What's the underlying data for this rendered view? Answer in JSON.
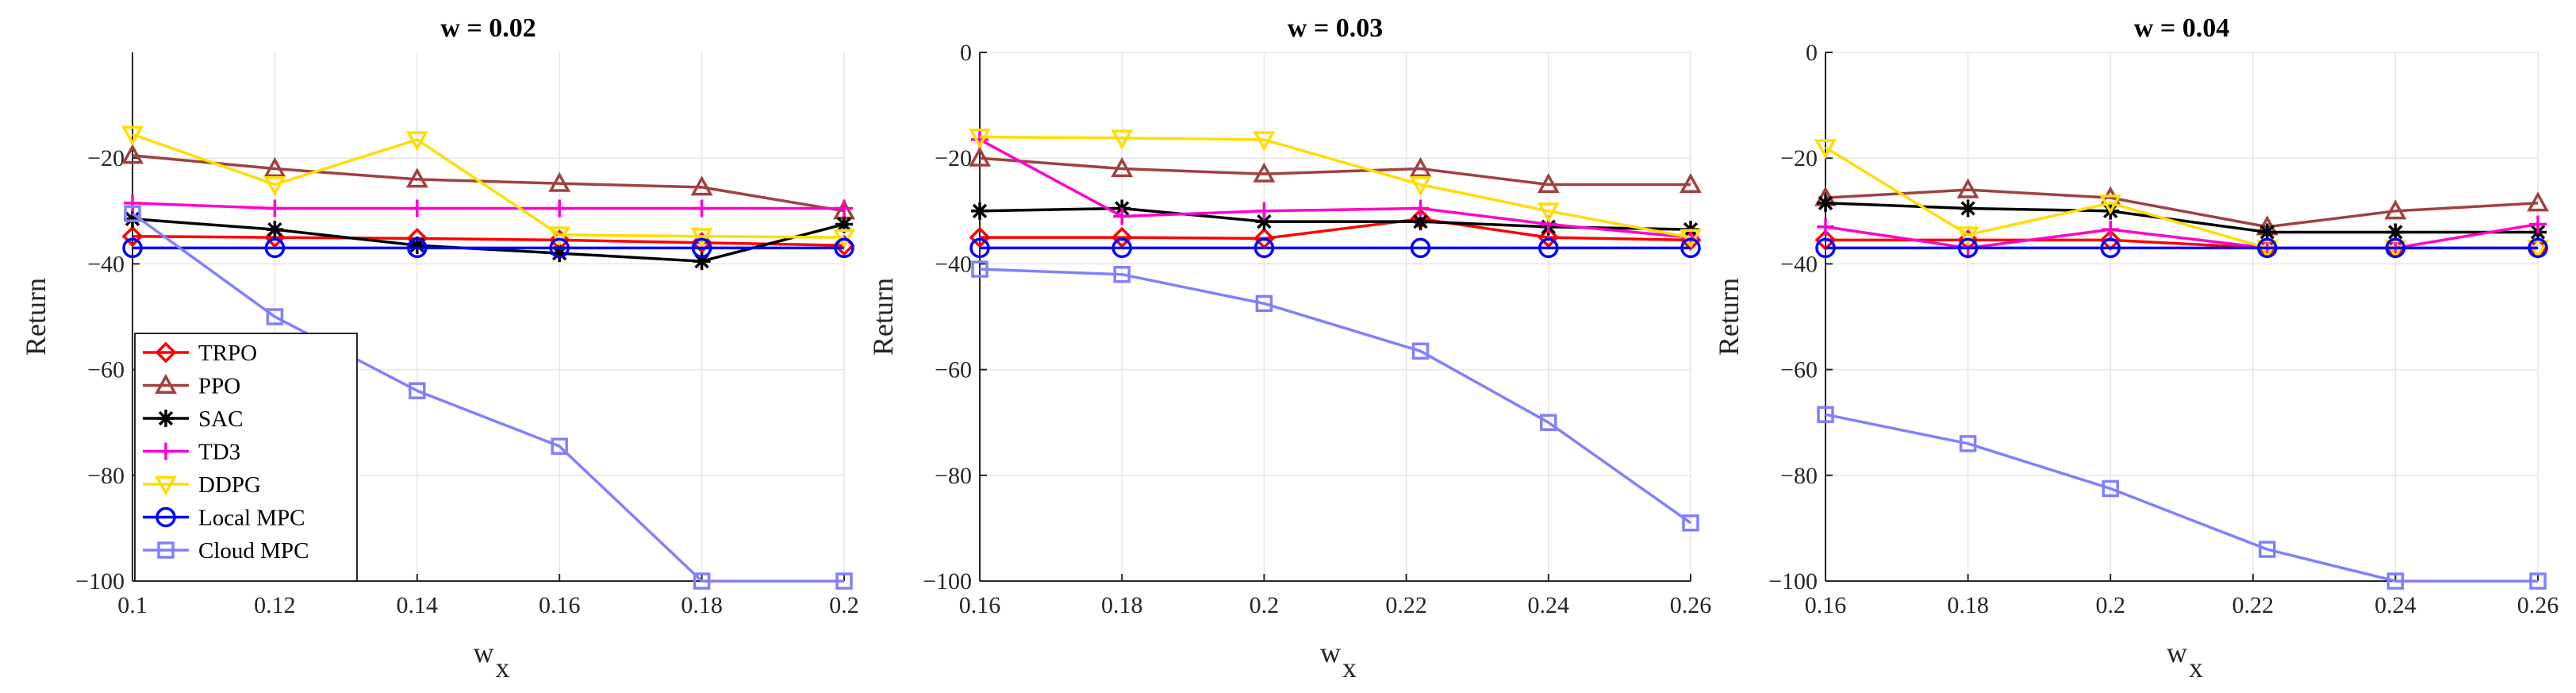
{
  "chart_data": [
    {
      "type": "line",
      "title": "w = 0.02",
      "xlabel": "w",
      "xlabel_sub": "x",
      "ylabel": "Return",
      "xlim": [
        0.1,
        0.2
      ],
      "ylim": [
        -100,
        0
      ],
      "xticks": [
        0.1,
        0.12,
        0.14,
        0.16,
        0.18,
        0.2
      ],
      "xtick_labels": [
        "0.1",
        "0.12",
        "0.14",
        "0.16",
        "0.18",
        "0.2"
      ],
      "yticks": [
        -100,
        -80,
        -60,
        -40,
        -20
      ],
      "ytick_labels": [
        "−100",
        "−80",
        "−60",
        "−40",
        "−20"
      ],
      "grid": true,
      "legend": "bottom-left",
      "x": [
        0.1,
        0.12,
        0.14,
        0.16,
        0.18,
        0.2
      ],
      "series": [
        {
          "name": "TRPO",
          "color": "#ff0000",
          "marker": "diamond",
          "values": [
            -34.8,
            -35.0,
            -35.2,
            -35.5,
            -36.0,
            -36.5
          ]
        },
        {
          "name": "PPO",
          "color": "#a0413f",
          "marker": "triangle-up",
          "values": [
            -19.5,
            -22.0,
            -24.0,
            -24.8,
            -25.5,
            -30.0
          ]
        },
        {
          "name": "SAC",
          "color": "#000000",
          "marker": "asterisk",
          "values": [
            -31.5,
            -33.5,
            -36.5,
            -38.0,
            -39.5,
            -32.5
          ]
        },
        {
          "name": "TD3",
          "color": "#ff00cc",
          "marker": "plus",
          "values": [
            -28.5,
            -29.5,
            -29.5,
            -29.5,
            -29.5,
            -29.5
          ]
        },
        {
          "name": "DDPG",
          "color": "#ffdd00",
          "marker": "triangle-down",
          "values": [
            -15.5,
            -25.0,
            -16.5,
            -34.5,
            -34.8,
            -35.0
          ]
        },
        {
          "name": "Local MPC",
          "color": "#0000ff",
          "marker": "circle",
          "values": [
            -37.0,
            -37.0,
            -37.0,
            -37.0,
            -37.0,
            -37.0
          ]
        },
        {
          "name": "Cloud MPC",
          "color": "#8080ff",
          "marker": "square",
          "values": [
            -30.5,
            -50.0,
            -64.0,
            -74.5,
            -100.0,
            -100.0
          ]
        }
      ]
    },
    {
      "type": "line",
      "title": "w = 0.03",
      "xlabel": "w",
      "xlabel_sub": "x",
      "ylabel": "Return",
      "xlim": [
        0.16,
        0.26
      ],
      "ylim": [
        -100,
        0
      ],
      "xticks": [
        0.16,
        0.18,
        0.2,
        0.22,
        0.24,
        0.26
      ],
      "xtick_labels": [
        "0.16",
        "0.18",
        "0.2",
        "0.22",
        "0.24",
        "0.26"
      ],
      "yticks": [
        -100,
        -80,
        -60,
        -40,
        -20,
        0
      ],
      "ytick_labels": [
        "−100",
        "−80",
        "−60",
        "−40",
        "−20",
        "0"
      ],
      "grid": true,
      "x": [
        0.16,
        0.18,
        0.2,
        0.222,
        0.24,
        0.26
      ],
      "series": [
        {
          "name": "TRPO",
          "color": "#ff0000",
          "marker": "diamond",
          "values": [
            -35.0,
            -35.0,
            -35.2,
            -31.5,
            -35.0,
            -35.5
          ]
        },
        {
          "name": "PPO",
          "color": "#a0413f",
          "marker": "triangle-up",
          "values": [
            -20.0,
            -22.0,
            -23.0,
            -22.0,
            -25.0,
            -25.0
          ]
        },
        {
          "name": "SAC",
          "color": "#000000",
          "marker": "asterisk",
          "values": [
            -30.0,
            -29.5,
            -32.0,
            -32.0,
            -33.0,
            -33.5
          ]
        },
        {
          "name": "TD3",
          "color": "#ff00cc",
          "marker": "plus",
          "values": [
            -16.5,
            -31.0,
            -30.0,
            -29.5,
            -32.5,
            -35.0
          ]
        },
        {
          "name": "DDPG",
          "color": "#ffdd00",
          "marker": "triangle-down",
          "values": [
            -16.0,
            -16.2,
            -16.5,
            -25.0,
            -30.0,
            -35.0
          ]
        },
        {
          "name": "Local MPC",
          "color": "#0000ff",
          "marker": "circle",
          "values": [
            -37.0,
            -37.0,
            -37.0,
            -37.0,
            -37.0,
            -37.0
          ]
        },
        {
          "name": "Cloud MPC",
          "color": "#8080ff",
          "marker": "square",
          "values": [
            -41.0,
            -42.0,
            -47.5,
            -56.5,
            -70.0,
            -89.0
          ]
        }
      ]
    },
    {
      "type": "line",
      "title": "w = 0.04",
      "xlabel": "w",
      "xlabel_sub": "x",
      "ylabel": "Return",
      "xlim": [
        0.16,
        0.26
      ],
      "ylim": [
        -100,
        0
      ],
      "xticks": [
        0.16,
        0.18,
        0.2,
        0.22,
        0.24,
        0.26
      ],
      "xtick_labels": [
        "0.16",
        "0.18",
        "0.2",
        "0.22",
        "0.24",
        "0.26"
      ],
      "yticks": [
        -100,
        -80,
        -60,
        -40,
        -20,
        0
      ],
      "ytick_labels": [
        "−100",
        "−80",
        "−60",
        "−40",
        "−20",
        "0"
      ],
      "grid": true,
      "x": [
        0.16,
        0.18,
        0.2,
        0.222,
        0.24,
        0.26
      ],
      "series": [
        {
          "name": "TRPO",
          "color": "#ff0000",
          "marker": "diamond",
          "values": [
            -35.5,
            -35.5,
            -35.5,
            -37.0,
            -37.0,
            -37.0
          ]
        },
        {
          "name": "PPO",
          "color": "#a0413f",
          "marker": "triangle-up",
          "values": [
            -27.5,
            -26.0,
            -27.5,
            -33.0,
            -30.0,
            -28.5
          ]
        },
        {
          "name": "SAC",
          "color": "#000000",
          "marker": "asterisk",
          "values": [
            -28.5,
            -29.5,
            -30.0,
            -34.0,
            -34.0,
            -34.0
          ]
        },
        {
          "name": "TD3",
          "color": "#ff00cc",
          "marker": "plus",
          "values": [
            -33.0,
            -37.0,
            -33.5,
            -37.0,
            -37.0,
            -32.5
          ]
        },
        {
          "name": "DDPG",
          "color": "#ffdd00",
          "marker": "triangle-down",
          "values": [
            -18.0,
            -34.5,
            -28.5,
            -37.0,
            -37.0,
            -37.0
          ]
        },
        {
          "name": "Local MPC",
          "color": "#0000ff",
          "marker": "circle",
          "values": [
            -37.0,
            -37.0,
            -37.0,
            -37.0,
            -37.0,
            -37.0
          ]
        },
        {
          "name": "Cloud MPC",
          "color": "#8080ff",
          "marker": "square",
          "values": [
            -68.5,
            -74.0,
            -82.5,
            -94.0,
            -100.0,
            -100.0
          ]
        }
      ]
    }
  ]
}
